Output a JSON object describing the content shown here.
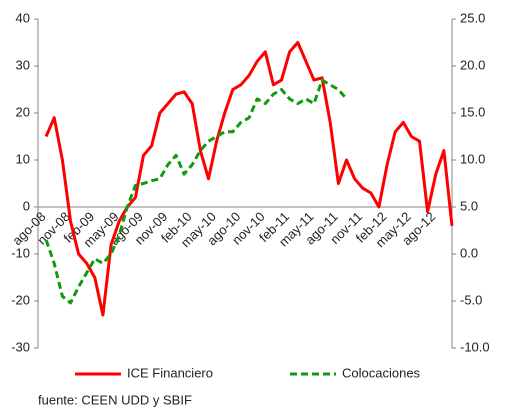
{
  "chart_data": {
    "type": "line",
    "categories": [
      "ago-08",
      null,
      null,
      "nov-08",
      null,
      null,
      "feb-09",
      null,
      null,
      "may-09",
      null,
      null,
      "ago-09",
      null,
      null,
      "nov-09",
      null,
      null,
      "feb-10",
      null,
      null,
      "may-10",
      null,
      null,
      "ago-10",
      null,
      null,
      "nov-10",
      null,
      null,
      "feb-11",
      null,
      null,
      "may-11",
      null,
      null,
      "ago-11",
      null,
      null,
      "nov-11",
      null,
      null,
      "feb-12",
      null,
      null,
      "may-12",
      null,
      null,
      "ago-12",
      null,
      null,
      null
    ],
    "series": [
      {
        "name": "ICE Financiero",
        "color": "#ff0000",
        "dash": false,
        "values": [
          null,
          15,
          19,
          10,
          -3,
          -10,
          -12,
          -15,
          -23,
          -8,
          -3,
          0,
          2,
          11,
          13,
          20,
          22,
          24,
          24.5,
          22,
          12,
          6,
          14,
          20,
          25,
          26,
          28,
          31,
          33,
          26,
          27,
          33,
          35,
          31,
          27,
          27.5,
          18,
          5,
          10,
          6,
          4,
          3,
          0,
          9,
          16,
          18,
          15,
          14,
          -1,
          7,
          12,
          -4
        ]
      },
      {
        "name": "Colocaciones",
        "color": "#109a10",
        "dash": true,
        "axis": "y2",
        "values": [
          null,
          1.5,
          -1,
          -4.5,
          -5.2,
          -3.5,
          -2,
          -0.5,
          -1,
          0,
          2,
          5,
          7.3,
          7.5,
          7.8,
          8,
          9.5,
          10.5,
          8.5,
          9.5,
          11,
          12,
          12.5,
          13,
          13,
          14,
          14.5,
          16.5,
          16,
          17,
          17.5,
          16.5,
          16,
          16.5,
          16,
          18.5,
          18,
          17.5,
          16.5,
          null,
          null,
          null,
          null,
          null,
          null,
          null,
          null,
          null,
          null,
          null,
          null,
          null
        ]
      }
    ],
    "ylim": [
      -30,
      40
    ],
    "yticks": [
      -30,
      -20,
      -10,
      0,
      10,
      20,
      30,
      40
    ],
    "y2lim": [
      -10,
      25
    ],
    "y2ticks": [
      {
        "value": -10,
        "label": "-10.0"
      },
      {
        "value": -5,
        "label": "-5.0"
      },
      {
        "value": 0,
        "label": "0.0"
      },
      {
        "value": 5,
        "label": "5.0"
      },
      {
        "value": 10,
        "label": "10.0"
      },
      {
        "value": 15,
        "label": "15.0"
      },
      {
        "value": 20,
        "label": "20.0"
      },
      {
        "value": 25,
        "label": "25.0"
      }
    ],
    "source": "fuente: CEEN UDD y SBIF"
  }
}
